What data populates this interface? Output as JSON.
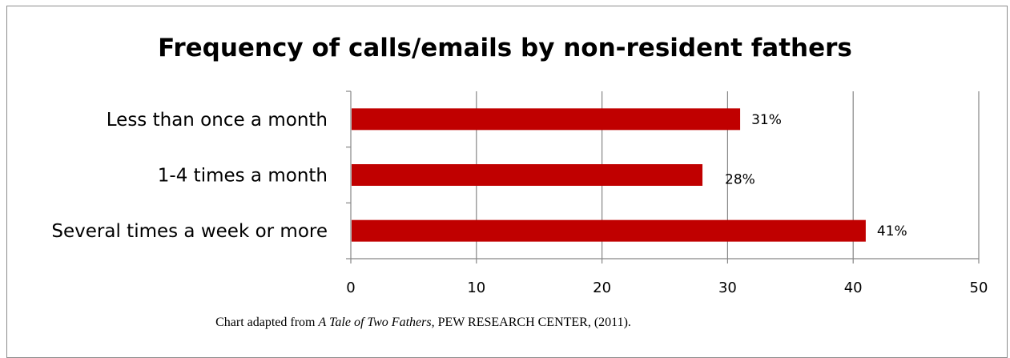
{
  "chart_data": {
    "type": "bar",
    "orientation": "horizontal",
    "title": "Frequency of calls/emails by non-resident fathers",
    "categories": [
      "Less than once a month",
      "1-4 times a month",
      "Several times a week or more"
    ],
    "values": [
      31,
      28,
      41
    ],
    "data_labels": [
      "31%",
      "28%",
      "41%"
    ],
    "xlim": [
      0,
      50
    ],
    "xticks": [
      0,
      10,
      20,
      30,
      40,
      50
    ],
    "xlabel": "",
    "ylabel": "",
    "grid": "vertical",
    "legend": "none",
    "bar_color": "#c00000",
    "grid_color": "#868686"
  },
  "caption": {
    "prefix": "Chart adapted from ",
    "title": "A Tale of Two Fathers,",
    "suffix": " PEW RESEARCH CENTER, (2011)."
  }
}
